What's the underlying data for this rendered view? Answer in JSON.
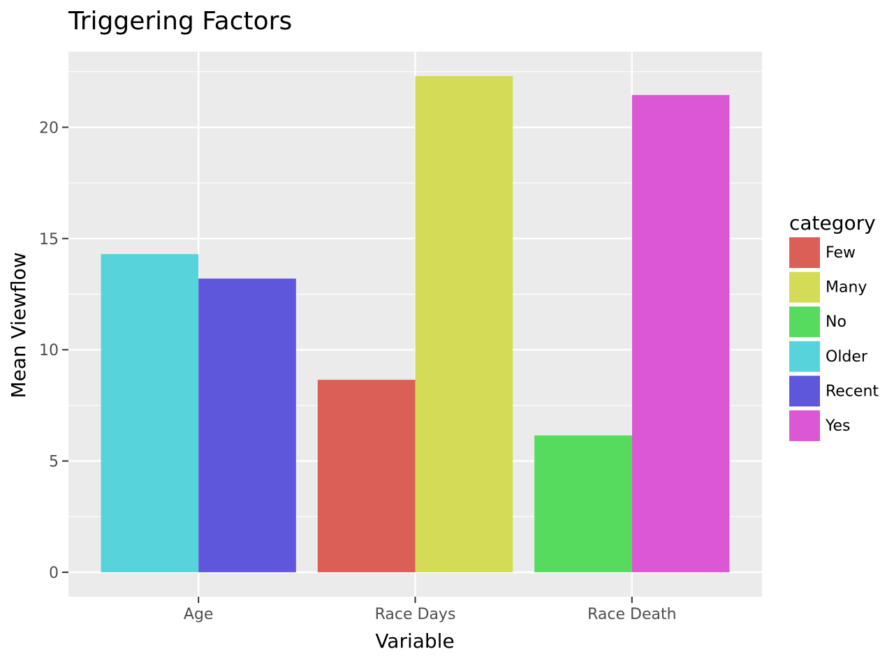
{
  "chart_data": {
    "type": "bar",
    "title": "Triggering Factors",
    "xlabel": "Variable",
    "ylabel": "Mean Viewflow",
    "categories": [
      "Age",
      "Race Days",
      "Race Death"
    ],
    "bars": [
      {
        "category": "Age",
        "group": "Older",
        "value": 14.3
      },
      {
        "category": "Age",
        "group": "Recent",
        "value": 13.2
      },
      {
        "category": "Race Days",
        "group": "Few",
        "value": 8.65
      },
      {
        "category": "Race Days",
        "group": "Many",
        "value": 22.3
      },
      {
        "category": "Race Death",
        "group": "No",
        "value": 6.15
      },
      {
        "category": "Race Death",
        "group": "Yes",
        "value": 21.45
      }
    ],
    "ylim": [
      -1.1,
      23.4
    ],
    "yticks": [
      0,
      5,
      10,
      15,
      20
    ],
    "grid": true,
    "legend": {
      "title": "category",
      "position": "right",
      "entries": [
        {
          "label": "Few",
          "color": "#db5f57"
        },
        {
          "label": "Many",
          "color": "#d3db57"
        },
        {
          "label": "No",
          "color": "#57db5f"
        },
        {
          "label": "Older",
          "color": "#57d3db"
        },
        {
          "label": "Recent",
          "color": "#5f57db"
        },
        {
          "label": "Yes",
          "color": "#db57d3"
        }
      ]
    },
    "panel_background": "#ebebeb",
    "grid_color": "#ffffff"
  }
}
